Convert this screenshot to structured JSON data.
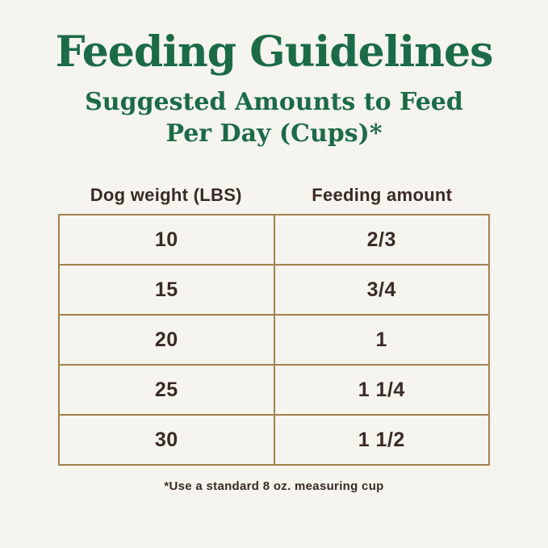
{
  "chart_data": {
    "type": "table",
    "title": "Feeding Guidelines",
    "subtitle_line1": "Suggested Amounts to Feed",
    "subtitle_line2": "Per Day (Cups)*",
    "columns": [
      "Dog weight (LBS)",
      "Feeding amount"
    ],
    "rows": [
      [
        "10",
        "2/3"
      ],
      [
        "15",
        "3/4"
      ],
      [
        "20",
        "1"
      ],
      [
        "25",
        "1 1/4"
      ],
      [
        "30",
        "1 1/2"
      ]
    ],
    "footnote": "*Use a standard 8 oz. measuring cup",
    "layout_hints": "two equal-width centered columns, values centered in cells, grid borders on"
  },
  "colors": {
    "background": "#f5f4ee",
    "heading_green": "#1b6b47",
    "table_border_tan": "#a3814f",
    "text_dark_brown": "#3a2a26"
  }
}
